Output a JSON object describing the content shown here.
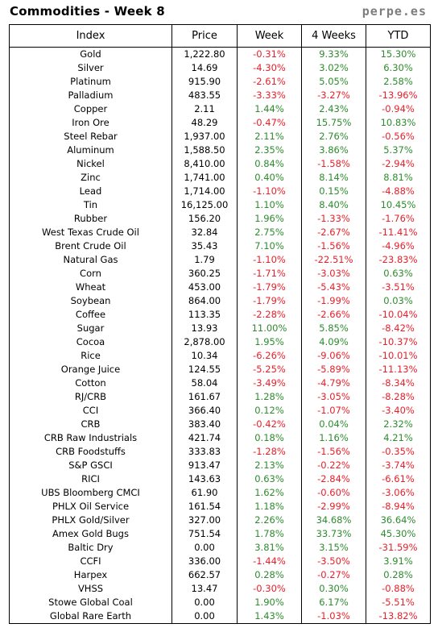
{
  "header": {
    "title": "Commodities - Week 8",
    "brand": "perpe.es"
  },
  "columns": [
    "Index",
    "Price",
    "Week",
    "4 Weeks",
    "YTD"
  ],
  "colors": {
    "positive": "#2e8b2e",
    "negative": "#e8202a"
  },
  "rows": [
    [
      "Gold",
      "1,222.80",
      "-0.31%",
      "9.33%",
      "15.30%"
    ],
    [
      "Silver",
      "14.69",
      "-4.30%",
      "3.02%",
      "6.30%"
    ],
    [
      "Platinum",
      "915.90",
      "-2.61%",
      "5.05%",
      "2.58%"
    ],
    [
      "Palladium",
      "483.55",
      "-3.33%",
      "-3.27%",
      "-13.96%"
    ],
    [
      "Copper",
      "2.11",
      "1.44%",
      "2.43%",
      "-0.94%"
    ],
    [
      "Iron Ore",
      "48.29",
      "-0.47%",
      "15.75%",
      "10.83%"
    ],
    [
      "Steel Rebar",
      "1,937.00",
      "2.11%",
      "2.76%",
      "-0.56%"
    ],
    [
      "Aluminum",
      "1,588.50",
      "2.35%",
      "3.86%",
      "5.37%"
    ],
    [
      "Nickel",
      "8,410.00",
      "0.84%",
      "-1.58%",
      "-2.94%"
    ],
    [
      "Zinc",
      "1,741.00",
      "0.40%",
      "8.14%",
      "8.81%"
    ],
    [
      "Lead",
      "1,714.00",
      "-1.10%",
      "0.15%",
      "-4.88%"
    ],
    [
      "Tin",
      "16,125.00",
      "1.10%",
      "8.40%",
      "10.45%"
    ],
    [
      "Rubber",
      "156.20",
      "1.96%",
      "-1.33%",
      "-1.76%"
    ],
    [
      "West Texas Crude Oil",
      "32.84",
      "2.75%",
      "-2.67%",
      "-11.41%"
    ],
    [
      "Brent Crude Oil",
      "35.43",
      "7.10%",
      "-1.56%",
      "-4.96%"
    ],
    [
      "Natural Gas",
      "1.79",
      "-1.10%",
      "-22.51%",
      "-23.83%"
    ],
    [
      "Corn",
      "360.25",
      "-1.71%",
      "-3.03%",
      "0.63%"
    ],
    [
      "Wheat",
      "453.00",
      "-1.79%",
      "-5.43%",
      "-3.51%"
    ],
    [
      "Soybean",
      "864.00",
      "-1.79%",
      "-1.99%",
      "0.03%"
    ],
    [
      "Coffee",
      "113.35",
      "-2.28%",
      "-2.66%",
      "-10.04%"
    ],
    [
      "Sugar",
      "13.93",
      "11.00%",
      "5.85%",
      "-8.42%"
    ],
    [
      "Cocoa",
      "2,878.00",
      "1.95%",
      "4.09%",
      "-10.37%"
    ],
    [
      "Rice",
      "10.34",
      "-6.26%",
      "-9.06%",
      "-10.01%"
    ],
    [
      "Orange Juice",
      "124.55",
      "-5.25%",
      "-5.89%",
      "-11.13%"
    ],
    [
      "Cotton",
      "58.04",
      "-3.49%",
      "-4.79%",
      "-8.34%"
    ],
    [
      "RJ/CRB",
      "161.67",
      "1.28%",
      "-3.05%",
      "-8.28%"
    ],
    [
      "CCI",
      "366.40",
      "0.12%",
      "-1.07%",
      "-3.40%"
    ],
    [
      "CRB",
      "383.40",
      "-0.42%",
      "0.04%",
      "2.32%"
    ],
    [
      "CRB Raw Industrials",
      "421.74",
      "0.18%",
      "1.16%",
      "4.21%"
    ],
    [
      "CRB Foodstuffs",
      "333.83",
      "-1.28%",
      "-1.56%",
      "-0.35%"
    ],
    [
      "S&P GSCI",
      "913.47",
      "2.13%",
      "-0.22%",
      "-3.74%"
    ],
    [
      "RICI",
      "143.63",
      "0.63%",
      "-2.84%",
      "-6.61%"
    ],
    [
      "UBS Bloomberg CMCI",
      "61.90",
      "1.62%",
      "-0.60%",
      "-3.06%"
    ],
    [
      "PHLX Oil Service",
      "161.54",
      "1.18%",
      "-2.99%",
      "-8.94%"
    ],
    [
      "PHLX Gold/Silver",
      "327.00",
      "2.26%",
      "34.68%",
      "36.64%"
    ],
    [
      "Amex Gold Bugs",
      "751.54",
      "1.78%",
      "33.73%",
      "45.30%"
    ],
    [
      "Baltic Dry",
      "0.00",
      "3.81%",
      "3.15%",
      "-31.59%"
    ],
    [
      "CCFI",
      "336.00",
      "-1.44%",
      "-3.50%",
      "3.91%"
    ],
    [
      "Harpex",
      "662.57",
      "0.28%",
      "-0.27%",
      "0.28%"
    ],
    [
      "VHSS",
      "13.47",
      "-0.30%",
      "0.30%",
      "-0.88%"
    ],
    [
      "Stowe Global Coal",
      "0.00",
      "1.90%",
      "6.17%",
      "-5.51%"
    ],
    [
      "Global Rare Earth",
      "0.00",
      "1.43%",
      "-1.03%",
      "-13.82%"
    ]
  ]
}
